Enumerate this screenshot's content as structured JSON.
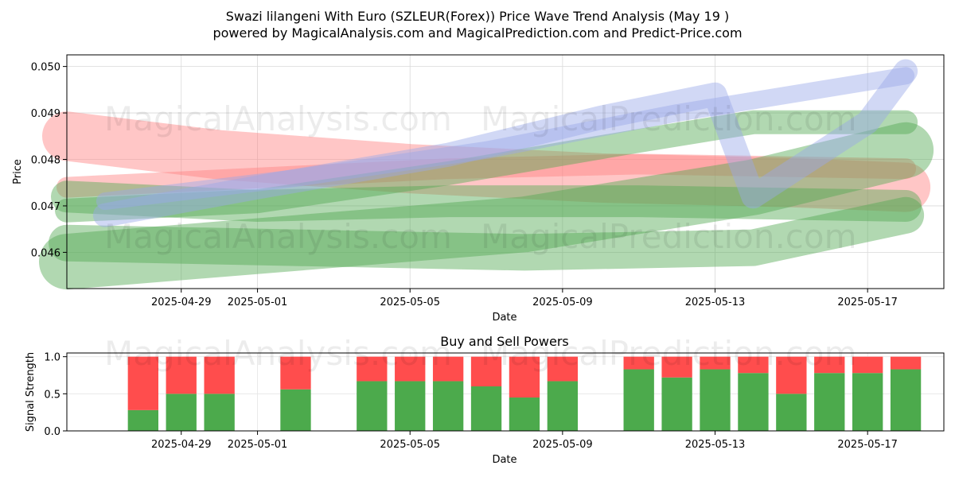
{
  "header": {
    "title_line1": "Swazi lilangeni With Euro (SZLEUR(Forex)) Price Wave Trend Analysis (May 19 )",
    "title_line2": "powered by MagicalAnalysis.com and MagicalPrediction.com and Predict-Price.com"
  },
  "watermarks": [
    "MagicalAnalysis.com",
    "MagicalPrediction.com"
  ],
  "colors": {
    "red": "#ff4d4d",
    "green": "#4caa4c",
    "blue": "#6f7fe0",
    "band_red": "#ff8080",
    "band_green": "#52a852",
    "band_blue": "#9aa8e8"
  },
  "chart_data": [
    {
      "type": "area",
      "title": "",
      "xlabel": "Date",
      "ylabel": "Price",
      "x_ticks": [
        "2025-04-29",
        "2025-05-01",
        "2025-05-05",
        "2025-05-09",
        "2025-05-13",
        "2025-05-17"
      ],
      "y_ticks": [
        0.046,
        0.047,
        0.048,
        0.049,
        0.05
      ],
      "y_tick_labels": [
        "0.046",
        "0.047",
        "0.048",
        "0.049",
        "0.050"
      ],
      "xlim": [
        "2025-04-26",
        "2025-05-19"
      ],
      "ylim": [
        0.04522,
        0.05025
      ],
      "grid": true,
      "series": [
        {
          "color": "red",
          "x": [
            "2025-04-26",
            "2025-04-30",
            "2025-05-05",
            "2025-05-10",
            "2025-05-15",
            "2025-05-18"
          ],
          "y": [
            0.0485,
            0.0481,
            0.0478,
            0.0476,
            0.0475,
            0.0474
          ]
        },
        {
          "color": "red",
          "x": [
            "2025-04-26",
            "2025-05-01",
            "2025-05-06",
            "2025-05-11",
            "2025-05-18"
          ],
          "y": [
            0.0474,
            0.0476,
            0.0478,
            0.0479,
            0.0478
          ]
        },
        {
          "color": "green",
          "x": [
            "2025-04-26",
            "2025-05-01",
            "2025-05-06",
            "2025-05-11",
            "2025-05-18"
          ],
          "y": [
            0.0472,
            0.047,
            0.0471,
            0.0471,
            0.047
          ]
        },
        {
          "color": "green",
          "x": [
            "2025-04-26",
            "2025-05-02",
            "2025-05-08",
            "2025-05-14",
            "2025-05-18"
          ],
          "y": [
            0.0458,
            0.0462,
            0.0466,
            0.0474,
            0.0482
          ]
        },
        {
          "color": "green",
          "x": [
            "2025-04-26",
            "2025-05-02",
            "2025-05-08",
            "2025-05-14",
            "2025-05-18"
          ],
          "y": [
            0.0462,
            0.0461,
            0.046,
            0.0461,
            0.0468
          ]
        },
        {
          "color": "green",
          "x": [
            "2025-04-26",
            "2025-05-01",
            "2025-05-06",
            "2025-05-11",
            "2025-05-14",
            "2025-05-18"
          ],
          "y": [
            0.0469,
            0.0471,
            0.0477,
            0.0484,
            0.0488,
            0.0488
          ]
        },
        {
          "color": "blue",
          "x": [
            "2025-04-27",
            "2025-05-01",
            "2025-05-06",
            "2025-05-10",
            "2025-05-13",
            "2025-05-14",
            "2025-05-17",
            "2025-05-18"
          ],
          "y": [
            0.0468,
            0.0474,
            0.0481,
            0.0489,
            0.0494,
            0.0472,
            0.0488,
            0.0499
          ]
        },
        {
          "color": "blue",
          "x": [
            "2025-04-27",
            "2025-05-02",
            "2025-05-07",
            "2025-05-12",
            "2025-05-18"
          ],
          "y": [
            0.0471,
            0.0476,
            0.0482,
            0.049,
            0.0498
          ]
        }
      ]
    },
    {
      "type": "bar",
      "title": "Buy and Sell Powers",
      "xlabel": "Date",
      "ylabel": "Signal Strength",
      "x_ticks": [
        "2025-04-29",
        "2025-05-01",
        "2025-05-05",
        "2025-05-09",
        "2025-05-13",
        "2025-05-17"
      ],
      "y_ticks": [
        0.0,
        0.5,
        1.0
      ],
      "y_tick_labels": [
        "0.0",
        "0.5",
        "1.0"
      ],
      "xlim": [
        "2025-04-26",
        "2025-05-19"
      ],
      "ylim": [
        0,
        1.05
      ],
      "categories": [
        "2025-04-28",
        "2025-04-29",
        "2025-04-30",
        "2025-05-02",
        "2025-05-04",
        "2025-05-05",
        "2025-05-06",
        "2025-05-07",
        "2025-05-08",
        "2025-05-09",
        "2025-05-11",
        "2025-05-12",
        "2025-05-13",
        "2025-05-14",
        "2025-05-15",
        "2025-05-16",
        "2025-05-17",
        "2025-05-18"
      ],
      "buy": [
        0.28,
        0.5,
        0.5,
        0.56,
        0.67,
        0.67,
        0.67,
        0.6,
        0.45,
        0.67,
        0.83,
        0.72,
        0.83,
        0.78,
        0.5,
        0.78,
        0.78,
        0.83
      ],
      "sell": [
        0.72,
        0.5,
        0.5,
        0.44,
        0.33,
        0.33,
        0.33,
        0.4,
        0.55,
        0.33,
        0.17,
        0.28,
        0.17,
        0.22,
        0.5,
        0.22,
        0.22,
        0.17
      ]
    }
  ]
}
